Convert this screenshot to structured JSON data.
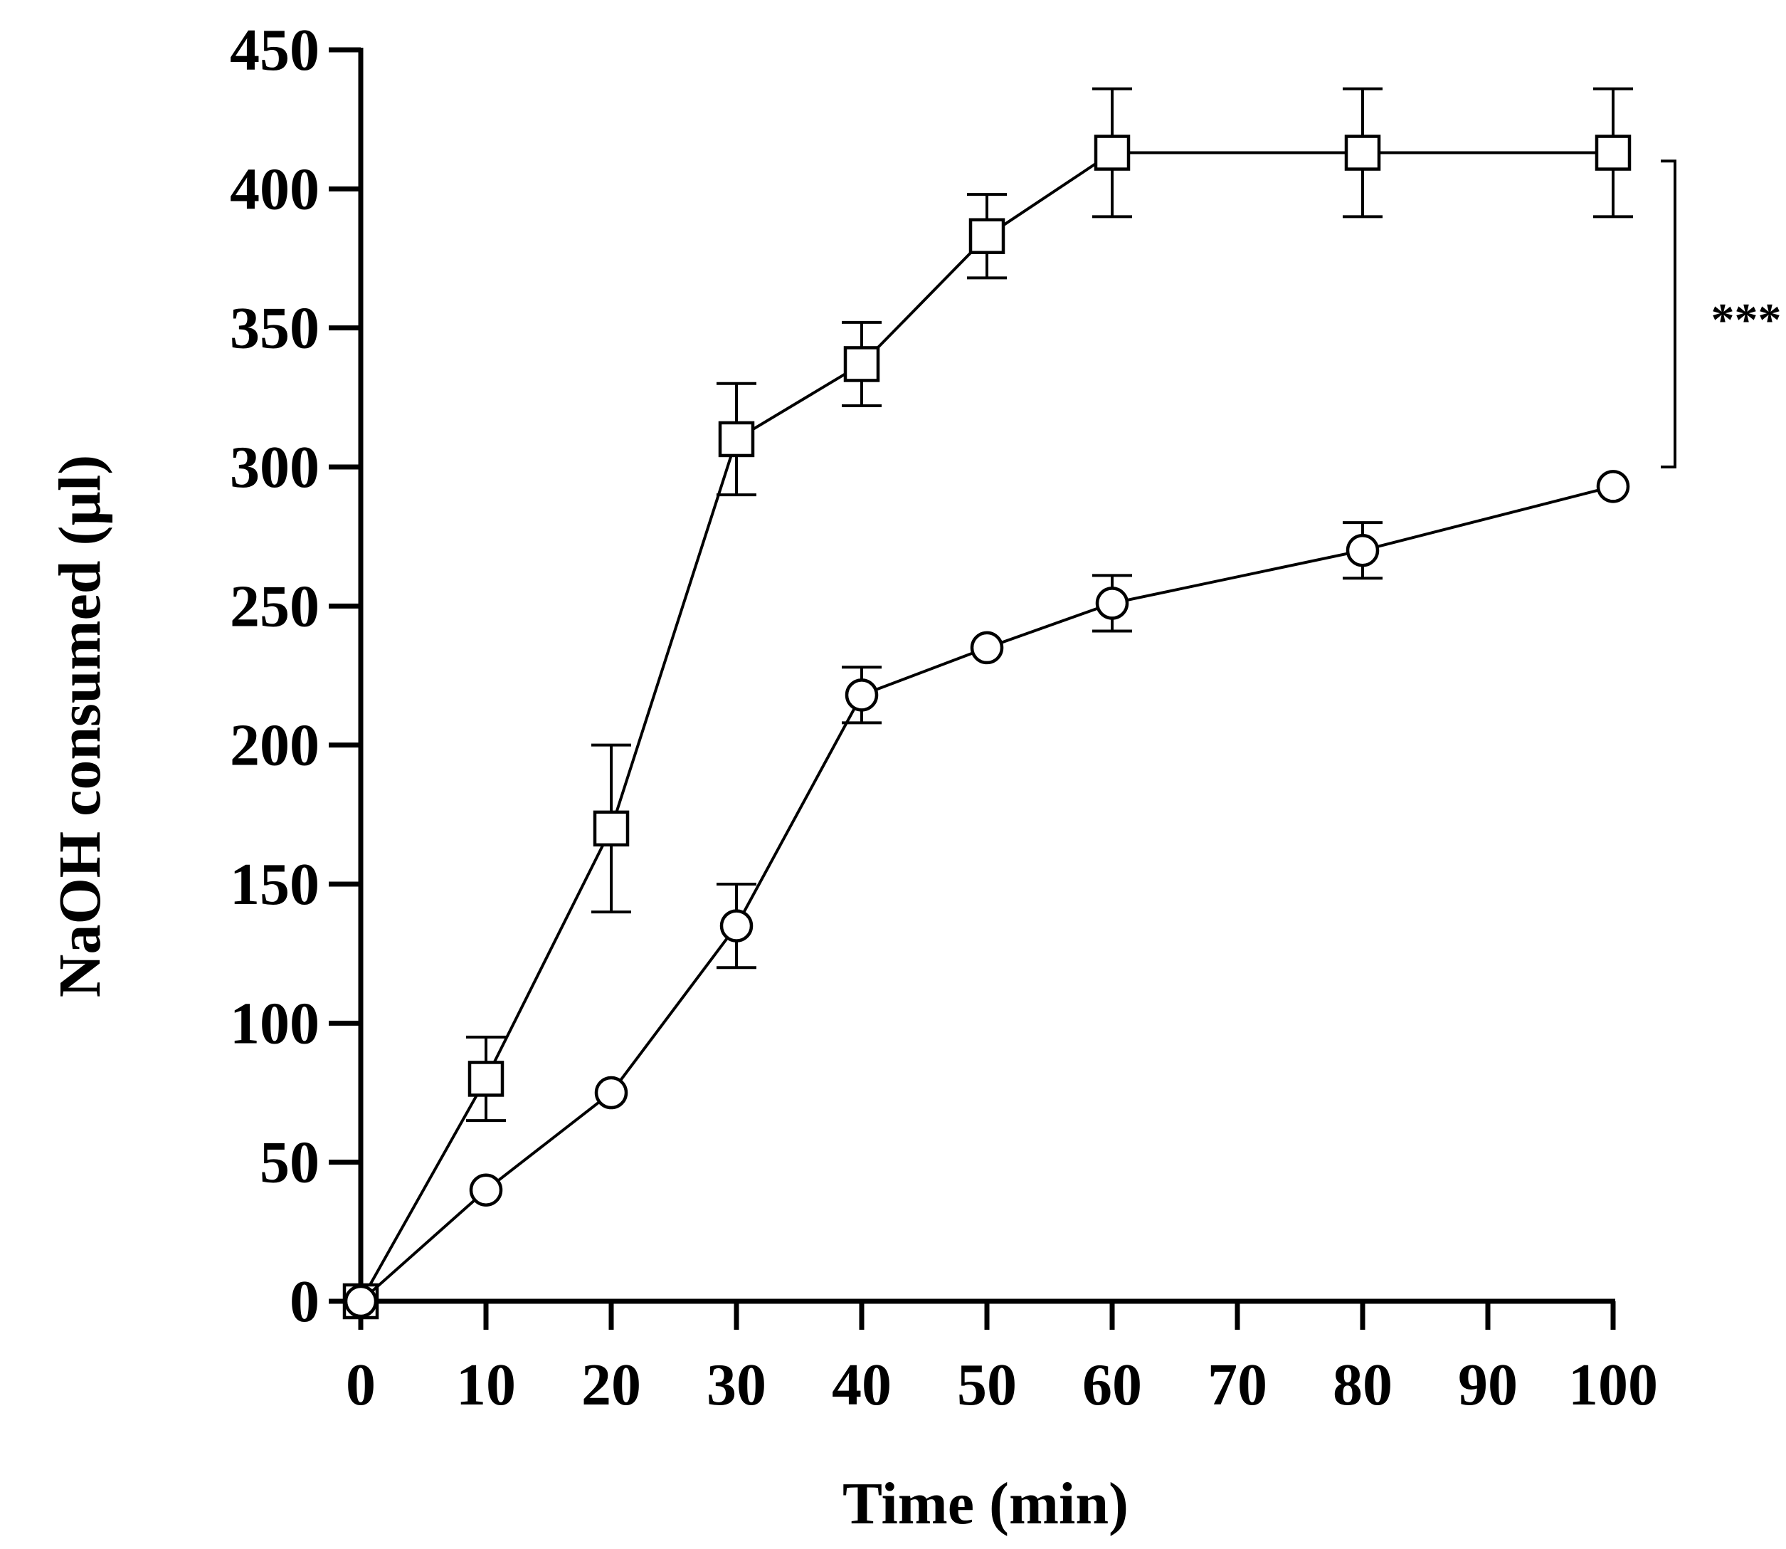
{
  "chart_data": {
    "type": "line",
    "title": "",
    "xlabel": "Time (min)",
    "ylabel": "NaOH consumed (µl)",
    "xlim": [
      0,
      100
    ],
    "ylim": [
      0,
      450
    ],
    "x_ticks": [
      0,
      10,
      20,
      30,
      40,
      50,
      60,
      70,
      80,
      90,
      100
    ],
    "x_tick_labels": [
      "0",
      "10",
      "20",
      "30",
      "40",
      "50",
      "60",
      "70",
      "80",
      "90",
      "100"
    ],
    "y_ticks": [
      0,
      50,
      100,
      150,
      200,
      250,
      300,
      350,
      400,
      450
    ],
    "y_tick_labels": [
      "0",
      "50",
      "100",
      "150",
      "200",
      "250",
      "300",
      "350",
      "400",
      "450"
    ],
    "grid": false,
    "series": [
      {
        "name": "squares",
        "marker": "square",
        "x": [
          0,
          10,
          20,
          30,
          40,
          50,
          60,
          80,
          100
        ],
        "values": [
          0,
          80,
          170,
          310,
          337,
          383,
          413,
          413,
          413
        ],
        "error": [
          0,
          15,
          30,
          20,
          15,
          15,
          23,
          23,
          23
        ]
      },
      {
        "name": "circles",
        "marker": "circle",
        "x": [
          0,
          10,
          20,
          30,
          40,
          50,
          60,
          80,
          100
        ],
        "values": [
          0,
          40,
          75,
          135,
          218,
          235,
          251,
          270,
          293
        ],
        "error": [
          0,
          0,
          0,
          15,
          10,
          0,
          10,
          10,
          0
        ]
      }
    ],
    "annotations": [
      {
        "type": "significance-bracket",
        "text": "***",
        "y_range": [
          300,
          410
        ],
        "x": 100
      }
    ]
  }
}
